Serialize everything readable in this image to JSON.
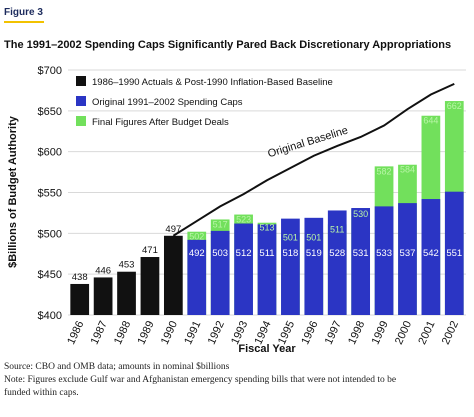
{
  "figure_label": "Figure 3",
  "chart_data": {
    "type": "bar",
    "title": "The 1991–2002 Spending Caps Significantly Pared Back Discretionary Appropriations",
    "y_label": "$Billions of Budget Authority",
    "x_label": "Fiscal Year",
    "categories": [
      "1986",
      "1987",
      "1988",
      "1989",
      "1990",
      "1991",
      "1992",
      "1993",
      "1994",
      "1995",
      "1996",
      "1997",
      "1998",
      "1999",
      "2000",
      "2001",
      "2002"
    ],
    "series": [
      {
        "name": "1986–1990 Actuals & Post-1990 Inflation-Based Baseline",
        "color": "#111111",
        "values": [
          438,
          446,
          453,
          471,
          497,
          null,
          null,
          null,
          null,
          null,
          null,
          null,
          null,
          null,
          null,
          null,
          null
        ]
      },
      {
        "name": "Original 1991–2002 Spending Caps",
        "color": "#2b35c4",
        "values": [
          null,
          null,
          null,
          null,
          null,
          492,
          503,
          512,
          511,
          518,
          519,
          528,
          531,
          533,
          537,
          542,
          551
        ]
      },
      {
        "name": "Final Figures After Budget Deals",
        "color": "#72e05c",
        "values": [
          null,
          null,
          null,
          null,
          null,
          502,
          517,
          523,
          513,
          501,
          501,
          511,
          530,
          582,
          584,
          644,
          662
        ]
      }
    ],
    "line": {
      "name": "Original Baseline",
      "color": "#111111",
      "values": [
        null,
        null,
        null,
        null,
        497,
        515,
        533,
        548,
        565,
        580,
        595,
        607,
        618,
        632,
        652,
        670,
        683
      ]
    },
    "ylim": [
      400,
      700
    ],
    "yticks": [
      {
        "value": 400,
        "label": "$400"
      },
      {
        "value": 450,
        "label": "$450"
      },
      {
        "value": 500,
        "label": "$500"
      },
      {
        "value": 550,
        "label": "$550"
      },
      {
        "value": 600,
        "label": "$600"
      },
      {
        "value": 650,
        "label": "$650"
      },
      {
        "value": 700,
        "label": "$700"
      }
    ],
    "grid": true,
    "legend": "upper left"
  },
  "source": "Source: CBO and OMB data; amounts in nominal $billions",
  "note": "Note: Figures exclude Gulf war and Afghanistan emergency spending bills that were not intended to be funded within caps."
}
